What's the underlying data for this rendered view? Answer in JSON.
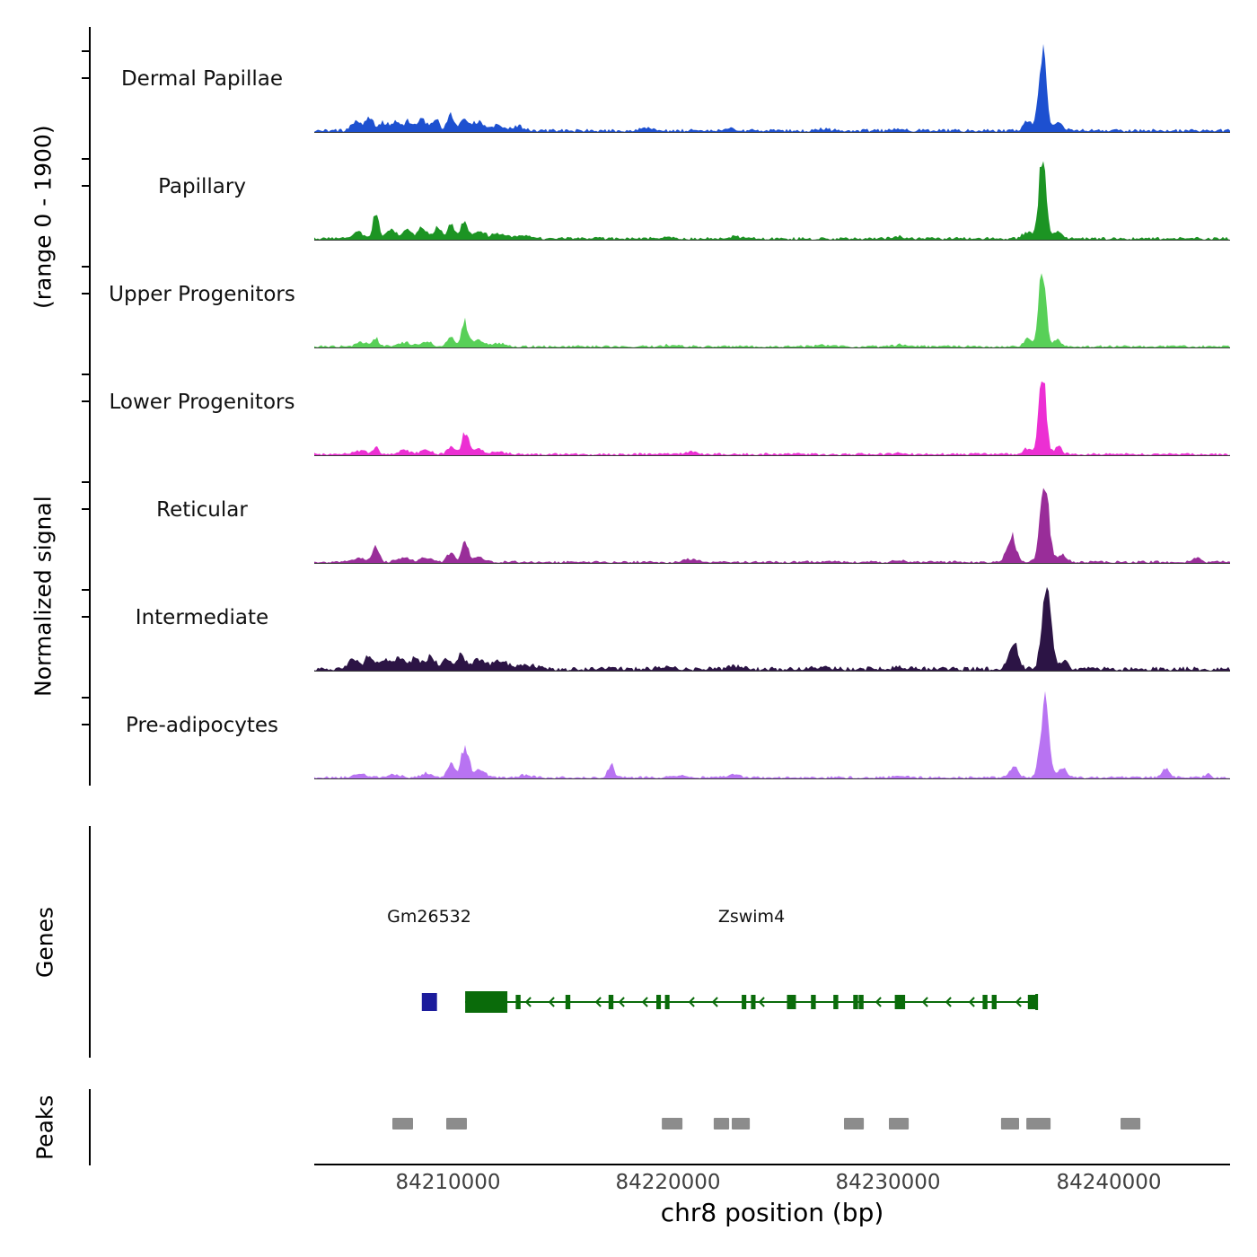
{
  "chart_data": {
    "type": "area",
    "subtype": "genome-browser-signal-tracks",
    "x_axis": {
      "label": "chr8 position (bp)",
      "range": [
        84203900,
        84245530
      ],
      "ticks": [
        84210000,
        84220000,
        84230000,
        84240000
      ]
    },
    "y_axis": {
      "label_line1": "Normalized signal",
      "label_line2": "(range 0 - 1900)",
      "range": [
        0,
        1900
      ]
    },
    "peak_format": "[center_bp, width_bp, height_signal_units]",
    "tracks": [
      {
        "name": "Dermal Papillae",
        "color": "#1d50d0",
        "floor": 35,
        "peaks": [
          [
            84205800,
            200,
            190
          ],
          [
            84206400,
            180,
            260
          ],
          [
            84207000,
            200,
            170
          ],
          [
            84207600,
            220,
            200
          ],
          [
            84208200,
            200,
            190
          ],
          [
            84208800,
            200,
            230
          ],
          [
            84209400,
            180,
            260
          ],
          [
            84210100,
            150,
            330
          ],
          [
            84210700,
            180,
            260
          ],
          [
            84211300,
            250,
            170
          ],
          [
            84212200,
            300,
            120
          ],
          [
            84213200,
            300,
            80
          ],
          [
            84219000,
            300,
            40
          ],
          [
            84222800,
            250,
            50
          ],
          [
            84227000,
            300,
            35
          ],
          [
            84230500,
            250,
            45
          ],
          [
            84236300,
            180,
            200
          ],
          [
            84237000,
            170,
            1760
          ],
          [
            84237750,
            200,
            170
          ]
        ]
      },
      {
        "name": "Papillary",
        "color": "#1c9423",
        "floor": 30,
        "peaks": [
          [
            84205900,
            200,
            150
          ],
          [
            84206700,
            130,
            560
          ],
          [
            84207400,
            200,
            180
          ],
          [
            84208100,
            220,
            170
          ],
          [
            84208800,
            200,
            220
          ],
          [
            84209500,
            180,
            260
          ],
          [
            84210100,
            160,
            300
          ],
          [
            84210700,
            160,
            330
          ],
          [
            84211400,
            250,
            160
          ],
          [
            84212300,
            300,
            110
          ],
          [
            84213500,
            350,
            60
          ],
          [
            84220000,
            300,
            35
          ],
          [
            84223000,
            250,
            45
          ],
          [
            84230500,
            250,
            40
          ],
          [
            84236300,
            180,
            160
          ],
          [
            84237000,
            160,
            1790
          ],
          [
            84237700,
            200,
            160
          ]
        ]
      },
      {
        "name": "Upper Progenitors",
        "color": "#58d058",
        "floor": 25,
        "peaks": [
          [
            84206000,
            250,
            90
          ],
          [
            84206700,
            150,
            160
          ],
          [
            84208000,
            300,
            80
          ],
          [
            84209000,
            250,
            100
          ],
          [
            84210100,
            160,
            220
          ],
          [
            84210750,
            150,
            520
          ],
          [
            84211300,
            250,
            130
          ],
          [
            84212300,
            300,
            70
          ],
          [
            84220000,
            300,
            30
          ],
          [
            84227000,
            300,
            25
          ],
          [
            84230500,
            250,
            35
          ],
          [
            84236300,
            170,
            150
          ],
          [
            84237000,
            160,
            1780
          ],
          [
            84237700,
            180,
            140
          ]
        ]
      },
      {
        "name": "Lower Progenitors",
        "color": "#ec2fd3",
        "floor": 25,
        "peaks": [
          [
            84206000,
            250,
            80
          ],
          [
            84206700,
            150,
            140
          ],
          [
            84208000,
            300,
            70
          ],
          [
            84209000,
            250,
            90
          ],
          [
            84210100,
            160,
            180
          ],
          [
            84210750,
            150,
            470
          ],
          [
            84211300,
            250,
            110
          ],
          [
            84212300,
            300,
            60
          ],
          [
            84221000,
            250,
            60
          ],
          [
            84230500,
            250,
            30
          ],
          [
            84236300,
            170,
            140
          ],
          [
            84237000,
            160,
            1780
          ],
          [
            84237700,
            180,
            150
          ]
        ]
      },
      {
        "name": "Reticular",
        "color": "#992d99",
        "floor": 25,
        "peaks": [
          [
            84206000,
            250,
            90
          ],
          [
            84206700,
            140,
            330
          ],
          [
            84208000,
            300,
            80
          ],
          [
            84209000,
            250,
            90
          ],
          [
            84210100,
            160,
            180
          ],
          [
            84210750,
            150,
            420
          ],
          [
            84211400,
            250,
            110
          ],
          [
            84221000,
            250,
            70
          ],
          [
            84230500,
            250,
            35
          ],
          [
            84235600,
            200,
            560
          ],
          [
            84237100,
            200,
            1620
          ],
          [
            84237900,
            180,
            160
          ],
          [
            84244000,
            160,
            90
          ]
        ]
      },
      {
        "name": "Intermediate",
        "color": "#2c1445",
        "floor": 45,
        "peaks": [
          [
            84205700,
            250,
            200
          ],
          [
            84206400,
            200,
            260
          ],
          [
            84207100,
            220,
            230
          ],
          [
            84207800,
            220,
            220
          ],
          [
            84208500,
            220,
            250
          ],
          [
            84209200,
            200,
            260
          ],
          [
            84209900,
            180,
            290
          ],
          [
            84210600,
            170,
            330
          ],
          [
            84211400,
            280,
            220
          ],
          [
            84212400,
            350,
            150
          ],
          [
            84213600,
            400,
            90
          ],
          [
            84220000,
            350,
            50
          ],
          [
            84223000,
            300,
            60
          ],
          [
            84227000,
            350,
            45
          ],
          [
            84230500,
            300,
            50
          ],
          [
            84235700,
            210,
            560
          ],
          [
            84237200,
            210,
            1700
          ],
          [
            84238000,
            180,
            180
          ]
        ]
      },
      {
        "name": "Pre-adipocytes",
        "color": "#b873f2",
        "floor": 25,
        "peaks": [
          [
            84206000,
            300,
            70
          ],
          [
            84207500,
            300,
            60
          ],
          [
            84209000,
            250,
            90
          ],
          [
            84210100,
            180,
            280
          ],
          [
            84210750,
            170,
            660
          ],
          [
            84211400,
            250,
            150
          ],
          [
            84213500,
            300,
            60
          ],
          [
            84217400,
            140,
            280
          ],
          [
            84220500,
            300,
            40
          ],
          [
            84223000,
            250,
            50
          ],
          [
            84230500,
            250,
            40
          ],
          [
            84235700,
            190,
            230
          ],
          [
            84237100,
            190,
            1700
          ],
          [
            84237900,
            170,
            200
          ],
          [
            84242600,
            170,
            190
          ],
          [
            84244500,
            130,
            90
          ]
        ]
      }
    ],
    "genes_section": {
      "label": "Genes",
      "genes": [
        {
          "name": "Gm26532",
          "color": "#1c1c9c",
          "start": 84208790,
          "end": 84209480,
          "type": "box"
        },
        {
          "name": "Zswim4",
          "color": "#0a6b0a",
          "start": 84210760,
          "end": 84236760,
          "strand": "-",
          "type": "model",
          "exons": [
            [
              84210760,
              84212680
            ],
            [
              84213060,
              84213280
            ],
            [
              84215320,
              84215540
            ],
            [
              84217280,
              84217500
            ],
            [
              84219450,
              84219660
            ],
            [
              84219840,
              84220050
            ],
            [
              84223330,
              84223540
            ],
            [
              84223750,
              84223960
            ],
            [
              84225390,
              84225800
            ],
            [
              84226480,
              84226700
            ],
            [
              84227500,
              84227720
            ],
            [
              84228400,
              84228620
            ],
            [
              84228650,
              84228870
            ],
            [
              84230290,
              84230760
            ],
            [
              84234280,
              84234500
            ],
            [
              84234700,
              84234920
            ],
            [
              84236340,
              84236760
            ]
          ]
        }
      ]
    },
    "peaks_section": {
      "label": "Peaks",
      "color": "#8c8c8c",
      "intervals": [
        [
          84207450,
          84208390
        ],
        [
          84209900,
          84210840
        ],
        [
          84219700,
          84220640
        ],
        [
          84222060,
          84222760
        ],
        [
          84222880,
          84223700
        ],
        [
          84227980,
          84228880
        ],
        [
          84230020,
          84230920
        ],
        [
          84235120,
          84235940
        ],
        [
          84236270,
          84237370
        ],
        [
          84240550,
          84241450
        ]
      ]
    }
  }
}
